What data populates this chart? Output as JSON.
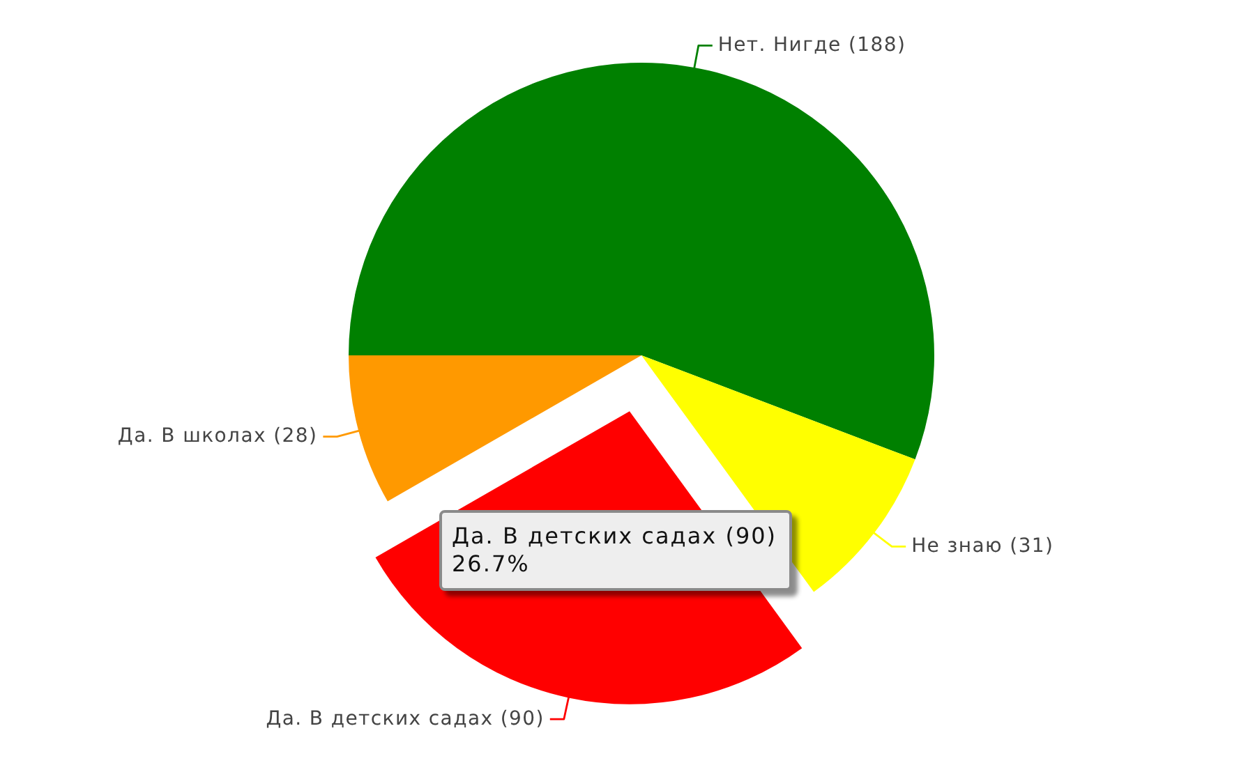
{
  "chart_data": {
    "type": "pie",
    "categories": [
      "Нет. Нигде",
      "Не знаю",
      "Да. В детских садах",
      "Да. В школах"
    ],
    "values": [
      188,
      31,
      90,
      28
    ],
    "value_labels": [
      "(188)",
      "(31)",
      "(90)",
      "(28)"
    ],
    "colors": [
      "#008000",
      "#ffff00",
      "#ff0000",
      "#ff9900"
    ],
    "annotations": [
      {
        "text": "Да. В детских садах (90)\n26.7%",
        "x": "Да. В детских садах"
      }
    ]
  }
}
